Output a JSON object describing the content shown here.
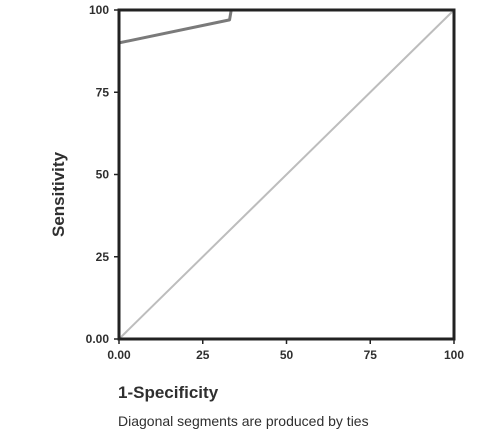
{
  "chart_data": {
    "type": "line",
    "title": "",
    "xlabel": "1-Specificity",
    "ylabel": "Sensitivity",
    "xlim": [
      0,
      100
    ],
    "ylim": [
      0,
      100
    ],
    "x_ticks": [
      "0.00",
      "25",
      "50",
      "75",
      "100"
    ],
    "y_ticks": [
      "0.00",
      "25",
      "50",
      "75",
      "100"
    ],
    "grid": false,
    "series": [
      {
        "role": "roc-curve",
        "color": "#7a7a7a",
        "points": [
          [
            0,
            90
          ],
          [
            33,
            97
          ],
          [
            33.5,
            100
          ],
          [
            100,
            100
          ],
          [
            100,
            0
          ]
        ]
      },
      {
        "role": "reference-diagonal",
        "color": "#bdbdbd",
        "points": [
          [
            0,
            0
          ],
          [
            100,
            100
          ]
        ]
      }
    ],
    "footnote": "Diagonal segments are produced by ties"
  }
}
